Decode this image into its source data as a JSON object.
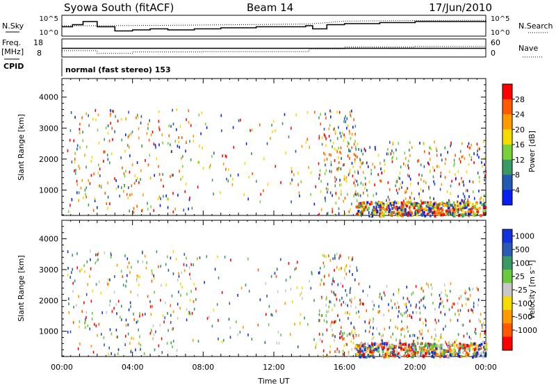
{
  "header": {
    "station": "Syowa South (fitACF)",
    "beam": "Beam 14",
    "date": "17/Jun/2010"
  },
  "panels": {
    "nsky_label": "N.Sky",
    "nsky_ticks": [
      "10^5",
      "10^0"
    ],
    "nsearch_label": "N.Search",
    "nsearch_ticks": [
      "10^5",
      "10^0"
    ],
    "freq_label": "Freq.",
    "freq_unit": "[MHz]",
    "freq_ticks": [
      "18",
      "8"
    ],
    "nave_label": "Nave",
    "nave_ticks": [
      "60",
      "0"
    ],
    "cpid_label": "CPID",
    "cpid_text": "normal (fast stereo) 153"
  },
  "axes": {
    "xlabel": "Time UT",
    "ylabel": "Slant Range [km]",
    "xticks": [
      "00:00",
      "04:00",
      "08:00",
      "12:00",
      "16:00",
      "20:00",
      "00:00"
    ],
    "yticks": [
      "1000",
      "2000",
      "3000",
      "4000"
    ]
  },
  "power_scale": {
    "label": "Power [dB]",
    "ticks": [
      "28",
      "24",
      "20",
      "16",
      "12",
      "8",
      "4"
    ],
    "colors": [
      "#ff0000",
      "#ff5a00",
      "#ff9b00",
      "#f5dc00",
      "#79d23c",
      "#3a9a64",
      "#245ab4",
      "#0a1ef0"
    ]
  },
  "velocity_scale": {
    "label": "Velocity [m s⁻¹]",
    "ticks": [
      "1000",
      "500",
      "100",
      "25",
      "-25",
      "-100",
      "-500",
      "-1000"
    ],
    "colors": [
      "#1432dc",
      "#2a5ab4",
      "#3a9a64",
      "#6cc83c",
      "#c8c8c8",
      "#f5dc00",
      "#ff9b00",
      "#ff5a00",
      "#ff0000"
    ]
  },
  "chart_data": {
    "type": "heatmap",
    "x_unit": "hours UT",
    "xlim": [
      0,
      24
    ],
    "ylim": [
      180,
      4600
    ],
    "nsky_trace": [
      [
        0,
        0.45
      ],
      [
        0.6,
        0.55
      ],
      [
        1.2,
        0.7
      ],
      [
        2.0,
        0.45
      ],
      [
        3.0,
        0.25
      ],
      [
        4.0,
        0.3
      ],
      [
        5.0,
        0.35
      ],
      [
        6.0,
        0.3
      ],
      [
        7.5,
        0.35
      ],
      [
        9.0,
        0.4
      ],
      [
        11.0,
        0.45
      ],
      [
        12.0,
        0.45
      ],
      [
        13.8,
        0.5
      ],
      [
        14.2,
        0.35
      ],
      [
        15.0,
        0.55
      ],
      [
        16.0,
        0.6
      ],
      [
        18.0,
        0.65
      ],
      [
        20.0,
        0.7
      ],
      [
        22.0,
        0.7
      ],
      [
        24.0,
        0.72
      ]
    ],
    "nsearch_trace": [
      [
        0,
        0.5
      ],
      [
        2,
        0.5
      ],
      [
        6,
        0.52
      ],
      [
        10,
        0.55
      ],
      [
        14,
        0.58
      ],
      [
        16,
        0.72
      ],
      [
        20,
        0.75
      ],
      [
        24,
        0.76
      ]
    ],
    "freq_trace": [
      [
        0,
        0.48
      ],
      [
        24,
        0.48
      ]
    ],
    "nave_trace": [
      [
        0,
        0.35
      ],
      [
        2,
        0.2
      ],
      [
        4,
        0.28
      ],
      [
        8,
        0.3
      ],
      [
        12,
        0.3
      ],
      [
        14,
        0.45
      ],
      [
        16,
        0.55
      ],
      [
        20,
        0.58
      ],
      [
        24,
        0.6
      ]
    ],
    "scatter_regions": [
      {
        "x": [
          0.3,
          7.5
        ],
        "y": [
          300,
          3650
        ],
        "density": 250
      },
      {
        "x": [
          7.5,
          14.5
        ],
        "y": [
          500,
          3600
        ],
        "density": 90
      },
      {
        "x": [
          14.5,
          16.7
        ],
        "y": [
          200,
          3600
        ],
        "density": 170
      },
      {
        "x": [
          16.7,
          24.0
        ],
        "y": [
          200,
          2600
        ],
        "density": 320
      }
    ],
    "ground_band": {
      "x": [
        16.6,
        24.0
      ],
      "y": [
        200,
        650
      ],
      "density": 380
    }
  }
}
